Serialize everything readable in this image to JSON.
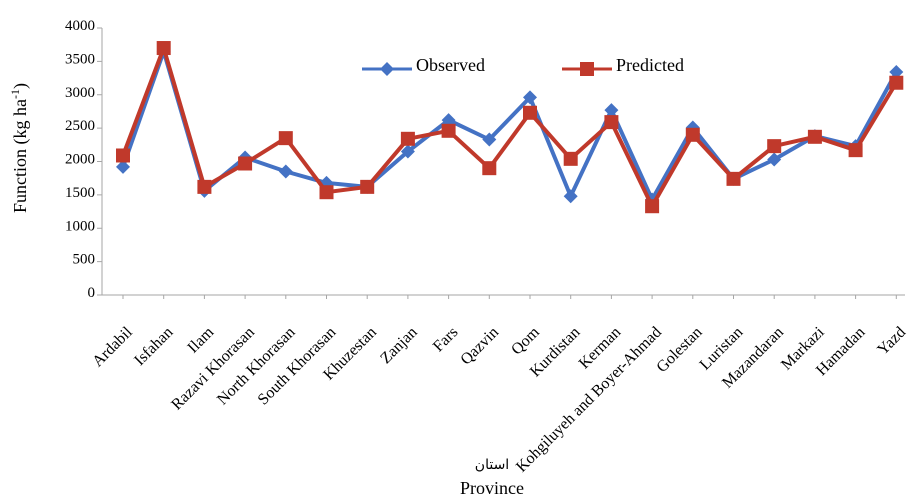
{
  "chart_data": {
    "type": "line",
    "ylabel": "Function (kg ha",
    "ylabel_sup": "-1",
    "ylabel_close": ")",
    "xlabel": "Province",
    "xlabel_sub": "استان",
    "ylim": [
      0,
      4000
    ],
    "y_ticks": [
      "0",
      "500",
      "1000",
      "1500",
      "2000",
      "2500",
      "3000",
      "3500",
      "4000"
    ],
    "grid": false,
    "legend_position": "top-center",
    "categories": [
      "Ardabil",
      "Isfahan",
      "Ilam",
      "Razavi Khorasan",
      "North Khorasan",
      "South Khorasan",
      "Khuzestan",
      "Zanjan",
      "Fars",
      "Qazvin",
      "Qom",
      "Kurdistan",
      "Kerman",
      "Kohgiluyeh and Boyer-Ahmad",
      "Golestan",
      "Luristan",
      "Mazandaran",
      "Markazi",
      "Hamadan",
      "Yazd"
    ],
    "series": [
      {
        "name": "Observed",
        "color": "#4472C4",
        "marker": "diamond",
        "values": [
          1920,
          3650,
          1560,
          2060,
          1850,
          1680,
          1620,
          2150,
          2620,
          2330,
          2960,
          1480,
          2770,
          1430,
          2510,
          1740,
          2030,
          2380,
          2230,
          3340
        ]
      },
      {
        "name": "Predicted",
        "color": "#C0392B",
        "marker": "square",
        "values": [
          2090,
          3700,
          1620,
          1970,
          2350,
          1540,
          1620,
          2340,
          2460,
          1900,
          2730,
          2040,
          2590,
          1330,
          2400,
          1740,
          2230,
          2370,
          2170,
          3180
        ]
      }
    ]
  }
}
